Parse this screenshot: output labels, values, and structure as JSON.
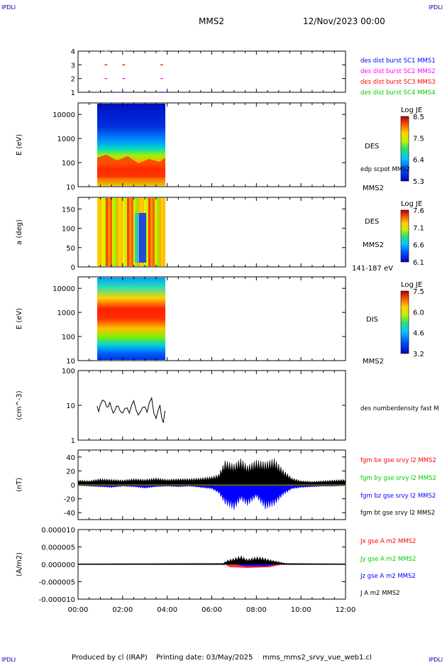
{
  "header": {
    "corner_left": "IPDLI",
    "corner_right": "IPDLI",
    "title": "MMS2",
    "date": "12/Nov/2023 00:00"
  },
  "footer": {
    "produced_by": "Produced by cl (IRAP)",
    "printing_date": "Printing date: 03/May/2025",
    "filename": "mms_mms2_srvy_vue_web1.cl",
    "corner_left": "IPDLI",
    "corner_right": "IPDLI"
  },
  "colors": {
    "blue": "#0000ff",
    "magenta": "#ff00ff",
    "red": "#ff0000",
    "green": "#00cc00",
    "black": "#000000"
  },
  "chart_data": [
    {
      "type": "scatter",
      "panel": "burst",
      "ylim": [
        1,
        4
      ],
      "ticks": [
        "1",
        "2",
        "3",
        "4"
      ],
      "legend": [
        {
          "label": "des dist burst SC1 MMS1",
          "color": "#0000ff"
        },
        {
          "label": "des dist burst SC2 MMS2",
          "color": "#ff00ff"
        },
        {
          "label": "des dist burst SC3 MMS3",
          "color": "#ff0000"
        },
        {
          "label": "des dist burst SC4 MMS4",
          "color": "#00cc00"
        }
      ],
      "series": [
        {
          "color": "#00cc00",
          "y": 4,
          "x": [
            1.25,
            2.05,
            3.75
          ]
        },
        {
          "color": "#ff0000",
          "y": 3,
          "x": [
            1.25,
            2.05,
            3.75
          ]
        },
        {
          "color": "#ff00ff",
          "y": 2,
          "x": [
            1.25,
            2.05,
            3.75
          ]
        },
        {
          "color": "#0000ff",
          "y": 1,
          "x": [
            2.05,
            3.75
          ]
        }
      ]
    },
    {
      "type": "heatmap",
      "panel": "des_energy",
      "ylabel": "E (eV)",
      "yscale": "log",
      "ylim": [
        10,
        30000
      ],
      "ticks": [
        "10",
        "100",
        "1000",
        "10000"
      ],
      "xrange_data": [
        0.85,
        3.95
      ],
      "side_labels": [
        "DES",
        "edp scpot MMS2",
        "MMS2"
      ],
      "colorbar": {
        "title": "Log JE",
        "ticks": [
          "8.5",
          "7.5",
          "6.4",
          "5.3"
        ]
      }
    },
    {
      "type": "heatmap",
      "panel": "des_pitch",
      "ylabel": "a (deg)",
      "ylim": [
        0,
        180
      ],
      "ticks": [
        "0",
        "50",
        "100",
        "150"
      ],
      "xrange_data": [
        0.85,
        3.95
      ],
      "side_labels": [
        "DES",
        "MMS2",
        "141-187 eV"
      ],
      "colorbar": {
        "title": "Log JE",
        "ticks": [
          "7.6",
          "7.1",
          "6.6",
          "6.1"
        ]
      }
    },
    {
      "type": "heatmap",
      "panel": "dis_energy",
      "ylabel": "E (eV)",
      "yscale": "log",
      "ylim": [
        10,
        30000
      ],
      "ticks": [
        "10",
        "100",
        "1000",
        "10000"
      ],
      "xrange_data": [
        0.85,
        3.95
      ],
      "side_labels": [
        "DIS",
        "MMS2"
      ],
      "colorbar": {
        "title": "Log JE",
        "ticks": [
          "7.5",
          "6.0",
          "4.6",
          "3.2"
        ]
      }
    },
    {
      "type": "line",
      "panel": "density",
      "ylabel": "(cm^-3)",
      "yscale": "log",
      "ylim": [
        1,
        100
      ],
      "ticks": [
        "1",
        "10",
        "100"
      ],
      "legend": [
        {
          "label": "des numberdensity fast M",
          "color": "#000000"
        }
      ],
      "x": [
        0.85,
        1.0,
        1.2,
        1.35,
        1.5,
        1.65,
        1.8,
        2.0,
        2.2,
        2.4,
        2.6,
        2.8,
        3.0,
        3.2,
        3.4,
        3.6,
        3.75,
        3.9
      ],
      "values": [
        9.5,
        10.5,
        13,
        9,
        8.5,
        7,
        9.5,
        6,
        8.5,
        10,
        7.5,
        6.5,
        9,
        12,
        6,
        7.5,
        4.5,
        7
      ]
    },
    {
      "type": "line",
      "panel": "fgm",
      "ylabel": "(nT)",
      "ylim": [
        -50,
        50
      ],
      "ticks": [
        "-40",
        "-20",
        "0",
        "20",
        "40"
      ],
      "legend": [
        {
          "label": "fgm bx gse srvy l2 MMS2",
          "color": "#ff0000"
        },
        {
          "label": "fgm by gse srvy l2 MMS2",
          "color": "#00cc00"
        },
        {
          "label": "fgm bz gse srvy l2 MMS2",
          "color": "#0000ff"
        },
        {
          "label": "fgm bt gse srvy l2 MMS2",
          "color": "#000000"
        }
      ],
      "bt_envelope": {
        "x": [
          0,
          0.5,
          1,
          1.5,
          2,
          2.5,
          3,
          3.5,
          4,
          4.5,
          5,
          5.5,
          6,
          6.3,
          6.6,
          7,
          7.3,
          7.6,
          8,
          8.4,
          8.8,
          9.2,
          9.6,
          10,
          10.5,
          11,
          11.5,
          12
        ],
        "values": [
          7,
          6,
          9,
          8,
          7,
          9,
          8,
          10,
          8,
          9,
          9,
          10,
          12,
          15,
          35,
          30,
          38,
          28,
          36,
          33,
          38,
          22,
          10,
          6,
          5,
          6,
          7,
          8
        ]
      },
      "bz_envelope": {
        "x": [
          0,
          0.5,
          1,
          1.5,
          2,
          2.5,
          3,
          3.5,
          4,
          4.5,
          5,
          5.5,
          6,
          6.3,
          6.6,
          7,
          7.3,
          7.6,
          8,
          8.4,
          8.8,
          9.2,
          9.6,
          10,
          10.5,
          11,
          11.5,
          12
        ],
        "values": [
          -1,
          -2,
          -3,
          -4,
          -2,
          -3,
          -5,
          -3,
          -2,
          -3,
          -2,
          -4,
          -6,
          -12,
          -28,
          -36,
          -22,
          -30,
          -18,
          -35,
          -30,
          -15,
          -6,
          -4,
          -3,
          -2,
          -2,
          -1
        ]
      }
    },
    {
      "type": "line",
      "panel": "current",
      "ylabel": "(A/m2)",
      "ylim": [
        -1e-05,
        1e-05
      ],
      "ticks": [
        "-0.000010",
        "-0.000005",
        "0.000000",
        "0.000005",
        "0.000010"
      ],
      "xticks": [
        "00:00",
        "02:00",
        "04:00",
        "06:00",
        "08:00",
        "10:00",
        "12:00"
      ],
      "legend": [
        {
          "label": "Jx gse A m2 MMS2",
          "color": "#ff0000"
        },
        {
          "label": "Jy gse A m2 MMS2",
          "color": "#00cc00"
        },
        {
          "label": "Jz gse A m2 MMS2",
          "color": "#0000ff"
        },
        {
          "label": "J A m2 MMS2",
          "color": "#000000"
        }
      ],
      "j_envelope": {
        "x": [
          0,
          6.5,
          6.7,
          7.0,
          7.3,
          7.6,
          8.0,
          8.3,
          8.6,
          9.0,
          9.3,
          12
        ],
        "values": [
          2e-07,
          3e-07,
          1.2e-06,
          1.8e-06,
          2.5e-06,
          1.5e-06,
          2.2e-06,
          2e-06,
          1.4e-06,
          8e-07,
          3e-07,
          2e-07
        ]
      }
    }
  ]
}
